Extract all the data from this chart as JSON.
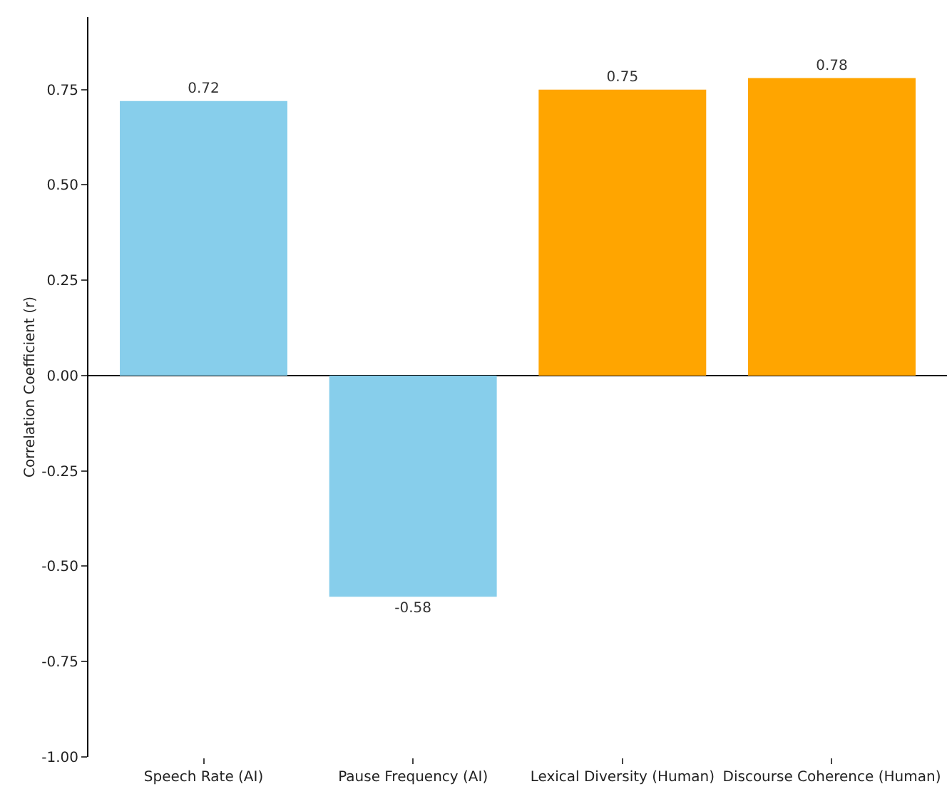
{
  "chart_data": {
    "type": "bar",
    "ylabel": "Correlation Coefficient (r)",
    "categories": [
      "Speech Rate (AI)",
      "Pause Frequency (AI)",
      "Lexical Diversity (Human)",
      "Discourse Coherence (Human)"
    ],
    "values": [
      0.72,
      -0.58,
      0.75,
      0.78
    ],
    "colors": [
      "#87ceeb",
      "#87ceeb",
      "#ffa500",
      "#ffa500"
    ],
    "ylim": [
      -1.0,
      0.94
    ],
    "yticks": [
      {
        "value": -1,
        "label": "-1.00"
      },
      {
        "value": -0.75,
        "label": "-0.75"
      },
      {
        "value": -0.5,
        "label": "-0.50"
      },
      {
        "value": -0.25,
        "label": "-0.25"
      },
      {
        "value": 0,
        "label": "0.00"
      },
      {
        "value": 0.25,
        "label": "0.25"
      },
      {
        "value": 0.5,
        "label": "0.50"
      },
      {
        "value": 0.75,
        "label": "0.75"
      }
    ],
    "data_labels": true
  }
}
